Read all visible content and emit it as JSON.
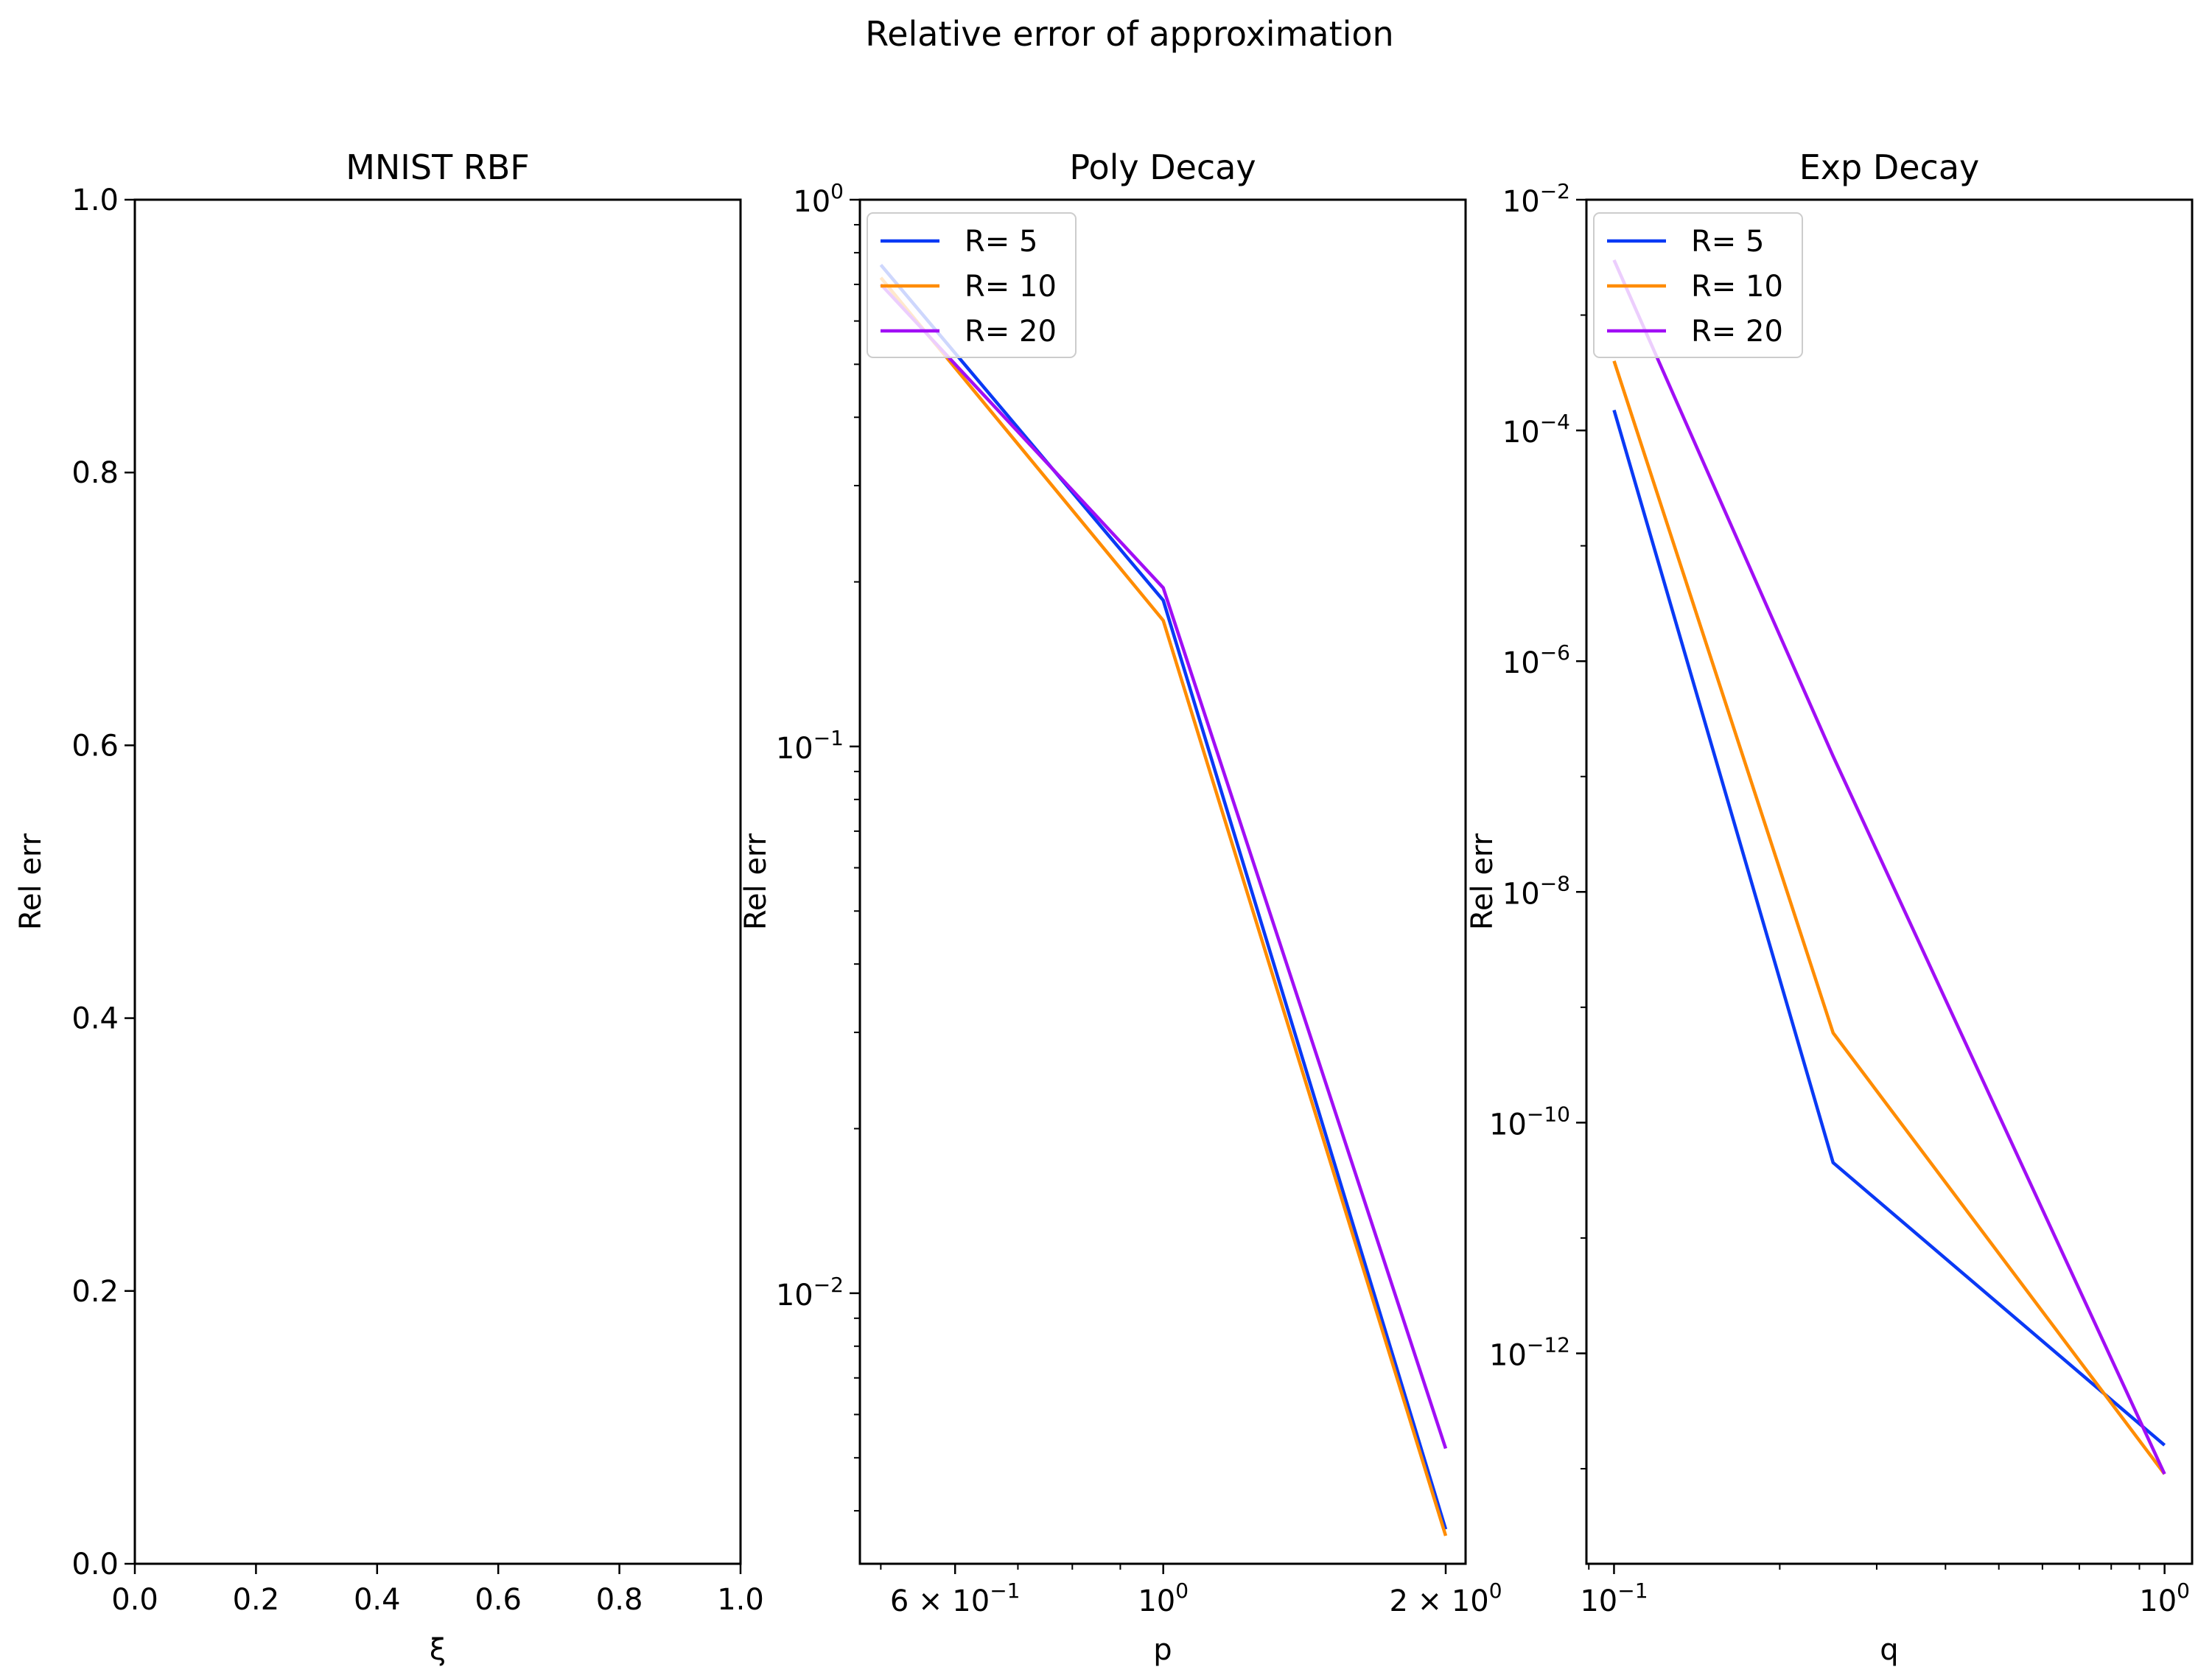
{
  "figure": {
    "suptitle": "Relative error of approximation"
  },
  "chart_data": [
    {
      "type": "line",
      "title": "MNIST RBF",
      "xlabel": "ξ",
      "ylabel": "Rel err",
      "xscale": "linear",
      "yscale": "linear",
      "xlim": [
        0.0,
        1.0
      ],
      "ylim": [
        0.0,
        1.0
      ],
      "xticks": [
        {
          "v": 0.0,
          "label": "0.0"
        },
        {
          "v": 0.2,
          "label": "0.2"
        },
        {
          "v": 0.4,
          "label": "0.4"
        },
        {
          "v": 0.6,
          "label": "0.6"
        },
        {
          "v": 0.8,
          "label": "0.8"
        },
        {
          "v": 1.0,
          "label": "1.0"
        }
      ],
      "yticks": [
        {
          "v": 0.0,
          "label": "0.0"
        },
        {
          "v": 0.2,
          "label": "0.2"
        },
        {
          "v": 0.4,
          "label": "0.4"
        },
        {
          "v": 0.6,
          "label": "0.6"
        },
        {
          "v": 0.8,
          "label": "0.8"
        },
        {
          "v": 1.0,
          "label": "1.0"
        }
      ],
      "grid": false,
      "series": []
    },
    {
      "type": "line",
      "title": "Poly Decay",
      "xlabel": "p",
      "ylabel": "Rel err",
      "xscale": "log",
      "yscale": "log",
      "xlim": [
        0.475,
        2.1
      ],
      "ylim": [
        0.0032,
        1.0
      ],
      "xticks": [
        {
          "v": 0.6,
          "base": "6 × 10",
          "exp": "−1"
        },
        {
          "v": 1.0,
          "base": "10",
          "exp": "0"
        },
        {
          "v": 2.0,
          "base": "2 × 10",
          "exp": "0"
        }
      ],
      "yticks": [
        {
          "v": 0.01,
          "base": "10",
          "exp": "−2"
        },
        {
          "v": 0.1,
          "base": "10",
          "exp": "−1"
        },
        {
          "v": 1.0,
          "base": "10",
          "exp": "0"
        }
      ],
      "grid": false,
      "legend": "upper-left",
      "series": [
        {
          "name": "R= 5",
          "color": "#0a39f5",
          "x": [
            0.5,
            1.0,
            2.0
          ],
          "y": [
            0.76,
            0.185,
            0.0037
          ]
        },
        {
          "name": "R= 10",
          "color": "#ff8c00",
          "x": [
            0.5,
            1.0,
            2.0
          ],
          "y": [
            0.72,
            0.17,
            0.0036
          ]
        },
        {
          "name": "R= 20",
          "color": "#a10ef5",
          "x": [
            0.5,
            1.0,
            2.0
          ],
          "y": [
            0.7,
            0.195,
            0.0052
          ]
        }
      ]
    },
    {
      "type": "line",
      "title": "Exp Decay",
      "xlabel": "q",
      "ylabel": "Rel err",
      "xscale": "log",
      "yscale": "log",
      "xlim": [
        0.0891,
        1.122
      ],
      "ylim": [
        1.5e-14,
        0.01
      ],
      "xticks": [
        {
          "v": 0.1,
          "base": "10",
          "exp": "−1"
        },
        {
          "v": 1.0,
          "base": "10",
          "exp": "0"
        }
      ],
      "yticks": [
        {
          "v": 1e-12,
          "base": "10",
          "exp": "−12"
        },
        {
          "v": 1e-10,
          "base": "10",
          "exp": "−10"
        },
        {
          "v": 1e-08,
          "base": "10",
          "exp": "−8"
        },
        {
          "v": 1e-06,
          "base": "10",
          "exp": "−6"
        },
        {
          "v": 0.0001,
          "base": "10",
          "exp": "−4"
        },
        {
          "v": 0.01,
          "base": "10",
          "exp": "−2"
        }
      ],
      "grid": false,
      "legend": "upper-left",
      "series": [
        {
          "name": "R= 5",
          "color": "#0a39f5",
          "x": [
            0.1,
            0.25,
            1.0
          ],
          "y": [
            0.00015,
            4.5e-11,
            1.6e-13
          ]
        },
        {
          "name": "R= 10",
          "color": "#ff8c00",
          "x": [
            0.1,
            0.25,
            1.0
          ],
          "y": [
            0.0004,
            6e-10,
            9e-14
          ]
        },
        {
          "name": "R= 20",
          "color": "#a10ef5",
          "x": [
            0.1,
            0.25,
            1.0
          ],
          "y": [
            0.003,
            1.5e-07,
            9e-14
          ]
        }
      ]
    }
  ]
}
